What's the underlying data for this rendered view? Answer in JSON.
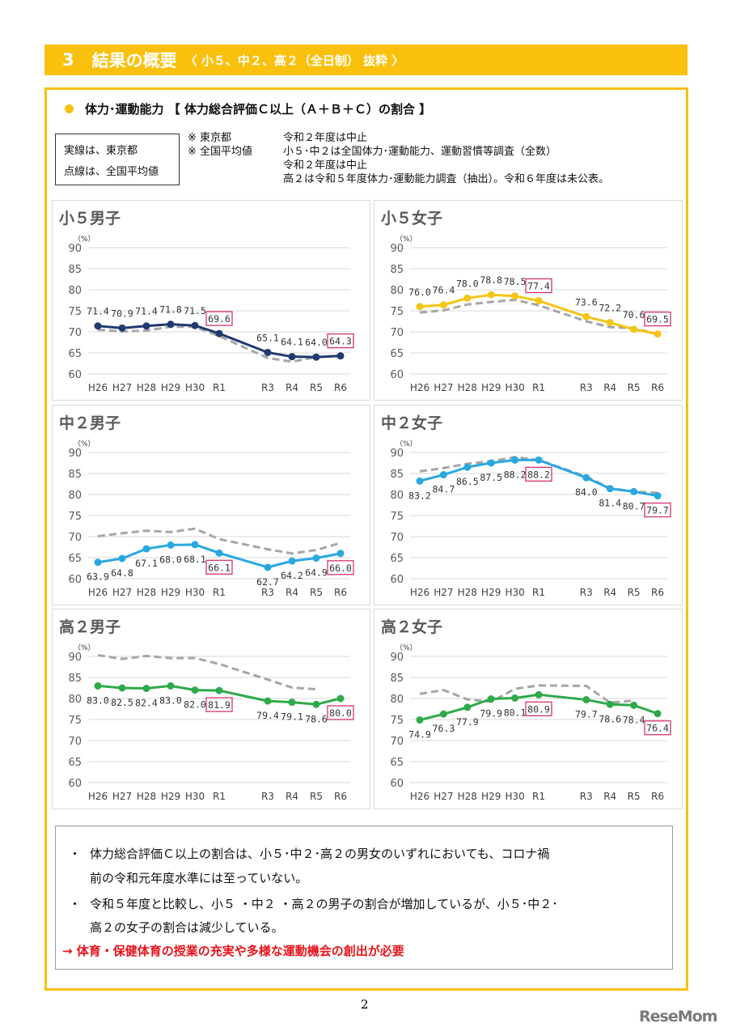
{
  "header": {
    "number": "3",
    "title": "結果の概要",
    "subtitle": "〈 小５、中２、高２（全日制） 抜粋 〉",
    "color": "#F9C10E"
  },
  "section_title": "体力･運動能力 【 体力総合評価Ｃ以上（Ａ＋Ｂ＋Ｃ）の割合 】",
  "legend": {
    "solid": "実線は、東京都",
    "dotted": "点線は、全国平均値"
  },
  "notes": [
    {
      "mark": "※ 東京都",
      "text": "令和２年度は中止"
    },
    {
      "mark": "※ 全国平均値",
      "text": "小５･中２は全国体力･運動能力、運動習慣等調査（全数）"
    },
    {
      "mark": "",
      "text": "令和２年度は中止"
    },
    {
      "mark": "",
      "text": "高２は令和５年度体力･運動能力調査（抽出）。令和６年度は未公表。"
    }
  ],
  "chart_data": [
    {
      "type": "line",
      "title": "小５男子",
      "unit_label": "（%）",
      "ylim": [
        60,
        90
      ],
      "yticks": [
        60,
        65,
        70,
        75,
        80,
        85,
        90
      ],
      "grid": true,
      "categories": [
        "H26",
        "H27",
        "H28",
        "H29",
        "H30",
        "R1",
        "R3",
        "R4",
        "R5",
        "R6"
      ],
      "highlighted": [
        "R1",
        "R6"
      ],
      "series": [
        {
          "name": "東京都",
          "style": "solid",
          "color": "#1F3A6E",
          "values": [
            71.4,
            70.9,
            71.4,
            71.8,
            71.5,
            69.6,
            65.1,
            64.1,
            64.0,
            64.3
          ]
        },
        {
          "name": "全国平均値",
          "style": "dashed",
          "color": "#A6A6A6",
          "values": [
            70.5,
            70.1,
            70.3,
            71.2,
            71.2,
            69.0,
            63.8,
            62.9,
            64.0,
            64.3
          ]
        }
      ]
    },
    {
      "type": "line",
      "title": "小５女子",
      "unit_label": "（%）",
      "ylim": [
        60,
        90
      ],
      "yticks": [
        60,
        65,
        70,
        75,
        80,
        85,
        90
      ],
      "grid": true,
      "categories": [
        "H26",
        "H27",
        "H28",
        "H29",
        "H30",
        "R1",
        "R3",
        "R4",
        "R5",
        "R6"
      ],
      "highlighted": [
        "R1",
        "R6"
      ],
      "series": [
        {
          "name": "東京都",
          "style": "solid",
          "color": "#F5C518",
          "values": [
            76.0,
            76.4,
            78.0,
            78.8,
            78.5,
            77.4,
            73.6,
            72.2,
            70.6,
            69.5
          ]
        },
        {
          "name": "全国平均値",
          "style": "dashed",
          "color": "#A6A6A6",
          "values": [
            74.6,
            75.1,
            76.5,
            77.1,
            77.6,
            76.3,
            72.5,
            71.1,
            70.9,
            69.4
          ]
        }
      ]
    },
    {
      "type": "line",
      "title": "中２男子",
      "unit_label": "（%）",
      "ylim": [
        60,
        90
      ],
      "yticks": [
        60,
        65,
        70,
        75,
        80,
        85,
        90
      ],
      "grid": true,
      "categories": [
        "H26",
        "H27",
        "H28",
        "H29",
        "H30",
        "R1",
        "R3",
        "R4",
        "R5",
        "R6"
      ],
      "highlighted": [
        "R1",
        "R6"
      ],
      "series": [
        {
          "name": "東京都",
          "style": "solid",
          "color": "#29A8E0",
          "values": [
            63.9,
            64.8,
            67.1,
            68.0,
            68.1,
            66.1,
            62.7,
            64.2,
            64.9,
            66.0
          ]
        },
        {
          "name": "全国平均値",
          "style": "dashed",
          "color": "#A6A6A6",
          "values": [
            70.1,
            70.8,
            71.4,
            71.1,
            71.9,
            69.4,
            67.0,
            66.0,
            66.8,
            68.5
          ]
        }
      ]
    },
    {
      "type": "line",
      "title": "中２女子",
      "unit_label": "（%）",
      "ylim": [
        60,
        90
      ],
      "yticks": [
        60,
        65,
        70,
        75,
        80,
        85,
        90
      ],
      "grid": true,
      "categories": [
        "H26",
        "H27",
        "H28",
        "H29",
        "H30",
        "R1",
        "R3",
        "R4",
        "R5",
        "R6"
      ],
      "highlighted": [
        "R1",
        "R6"
      ],
      "series": [
        {
          "name": "東京都",
          "style": "solid",
          "color": "#29A8E0",
          "values": [
            83.2,
            84.7,
            86.5,
            87.5,
            88.2,
            88.2,
            84.0,
            81.4,
            80.7,
            79.7
          ]
        },
        {
          "name": "全国平均値",
          "style": "dashed",
          "color": "#A6A6A6",
          "values": [
            85.5,
            86.3,
            87.3,
            87.9,
            88.9,
            88.2,
            84.3,
            81.5,
            80.7,
            80.4
          ]
        }
      ]
    },
    {
      "type": "line",
      "title": "高２男子",
      "unit_label": "（%）",
      "ylim": [
        60,
        90
      ],
      "yticks": [
        60,
        65,
        70,
        75,
        80,
        85,
        90
      ],
      "grid": true,
      "categories": [
        "H26",
        "H27",
        "H28",
        "H29",
        "H30",
        "R1",
        "R3",
        "R4",
        "R5",
        "R6"
      ],
      "highlighted": [
        "R1",
        "R6"
      ],
      "series": [
        {
          "name": "東京都",
          "style": "solid",
          "color": "#2EAA4A",
          "values": [
            83.0,
            82.5,
            82.4,
            83.0,
            82.0,
            81.9,
            79.4,
            79.1,
            78.6,
            80.0
          ]
        },
        {
          "name": "全国平均値",
          "style": "dashed",
          "color": "#A6A6A6",
          "values": [
            90.3,
            89.4,
            90.1,
            89.6,
            89.6,
            88.2,
            84.5,
            82.6,
            82.2,
            null
          ]
        }
      ]
    },
    {
      "type": "line",
      "title": "高２女子",
      "unit_label": "（%）",
      "ylim": [
        60,
        90
      ],
      "yticks": [
        60,
        65,
        70,
        75,
        80,
        85,
        90
      ],
      "grid": true,
      "categories": [
        "H26",
        "H27",
        "H28",
        "H29",
        "H30",
        "R1",
        "R3",
        "R4",
        "R5",
        "R6"
      ],
      "highlighted": [
        "R1",
        "R6"
      ],
      "series": [
        {
          "name": "東京都",
          "style": "solid",
          "color": "#2EAA4A",
          "values": [
            74.9,
            76.3,
            77.9,
            79.9,
            80.1,
            80.9,
            79.7,
            78.6,
            78.4,
            76.4
          ]
        },
        {
          "name": "全国平均値",
          "style": "dashed",
          "color": "#A6A6A6",
          "values": [
            81.1,
            82.0,
            79.8,
            79.2,
            82.3,
            83.1,
            83.0,
            79.0,
            79.5,
            null
          ]
        }
      ]
    }
  ],
  "summary": {
    "bullets": [
      {
        "mark": "・",
        "line1": "体力総合評価Ｃ以上の割合は、小５･中２･高２の男女のいずれにおいても、コロナ禍",
        "line2": "前の令和元年度水準には至っていない。"
      },
      {
        "mark": "・",
        "line1": "令和５年度と比較し、小５ ・中２ ・高２の男子の割合が増加しているが、小５･中２･",
        "line2": "高２の女子の割合は減少している。"
      }
    ],
    "conclusion": "→ 体育・保健体育の授業の充実や多様な運動機会の創出が必要",
    "conclusion_color": "#E8141B"
  },
  "page_number": "2",
  "watermark": "ReseMom"
}
